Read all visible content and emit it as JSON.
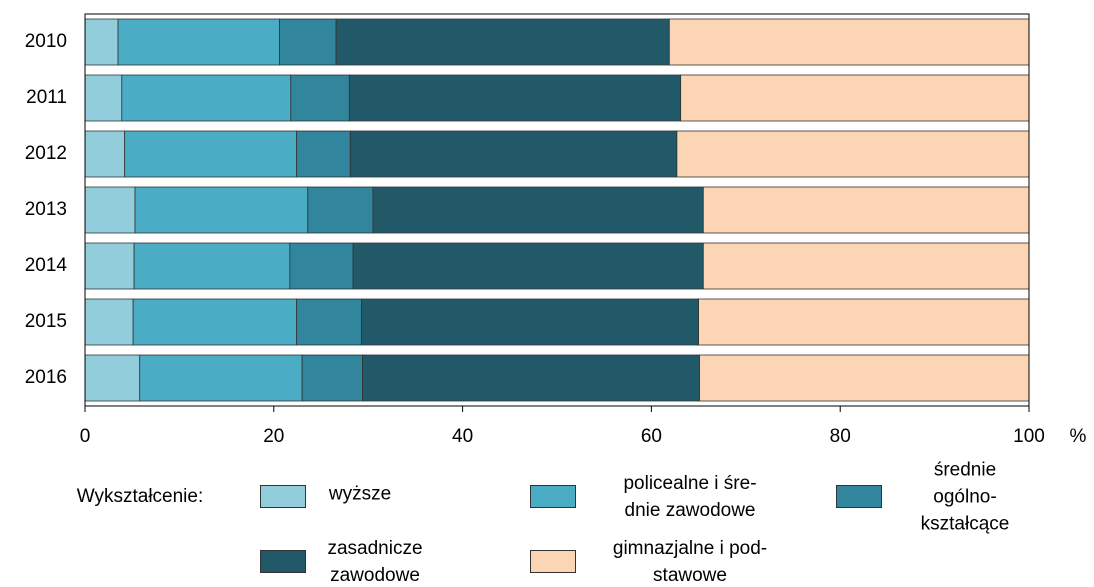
{
  "chart_data": {
    "type": "stacked_barh",
    "categories": [
      "2010",
      "2011",
      "2012",
      "2013",
      "2014",
      "2015",
      "2016"
    ],
    "series": [
      {
        "name": "wyższe",
        "color": "#92cddc",
        "values": [
          3.5,
          3.9,
          4.2,
          5.3,
          5.2,
          5.1,
          5.8
        ]
      },
      {
        "name": "policealne i śre-\ndnie zawodowe",
        "color": "#4bacc6",
        "values": [
          17.1,
          17.9,
          18.2,
          18.3,
          16.5,
          17.3,
          17.2
        ]
      },
      {
        "name": "średnie ogólno-\nkształcące",
        "color": "#31859c",
        "values": [
          6.0,
          6.2,
          5.7,
          6.9,
          6.7,
          6.9,
          6.4
        ]
      },
      {
        "name": "zasadnicze\nzawodowe",
        "color": "#215968",
        "values": [
          35.3,
          35.1,
          34.6,
          35.0,
          37.1,
          35.7,
          35.7
        ]
      },
      {
        "name": "gimnazjalne i pod-\nstawowe",
        "color": "#fcd5b5",
        "values": [
          38.1,
          36.9,
          37.3,
          34.5,
          34.5,
          35.0,
          34.9
        ]
      }
    ],
    "xlabel": "%",
    "legend_title": "Wykształcenie:",
    "xlim": [
      0,
      100
    ],
    "xticks": [
      0,
      20,
      40,
      60,
      80,
      100
    ]
  }
}
